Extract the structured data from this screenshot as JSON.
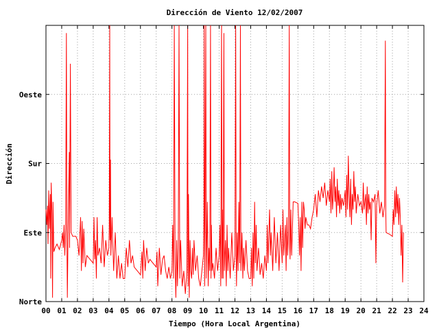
{
  "chart_data": {
    "type": "line",
    "title": "Dirección de Viento 12/02/2007",
    "xlabel": "Tiempo (Hora Local Argentina)",
    "ylabel": "Dirección",
    "xlim": [
      0,
      24
    ],
    "ylim": [
      0,
      360
    ],
    "x_ticks": [
      "00",
      "01",
      "02",
      "03",
      "04",
      "05",
      "06",
      "07",
      "08",
      "09",
      "10",
      "11",
      "12",
      "13",
      "14",
      "15",
      "16",
      "17",
      "18",
      "19",
      "20",
      "21",
      "22",
      "23",
      "24"
    ],
    "y_ticks": [
      {
        "value": 0,
        "label": "Norte"
      },
      {
        "value": 90,
        "label": "Este"
      },
      {
        "value": 180,
        "label": "Sur"
      },
      {
        "value": 270,
        "label": "Oeste"
      }
    ],
    "grid": true,
    "series_color": "#ff0000",
    "points": [
      [
        0.0,
        120
      ],
      [
        0.05,
        100
      ],
      [
        0.1,
        125
      ],
      [
        0.13,
        75
      ],
      [
        0.18,
        145
      ],
      [
        0.22,
        95
      ],
      [
        0.28,
        140
      ],
      [
        0.3,
        30
      ],
      [
        0.33,
        155
      ],
      [
        0.38,
        115
      ],
      [
        0.42,
        5
      ],
      [
        0.45,
        130
      ],
      [
        0.5,
        65
      ],
      [
        0.58,
        70
      ],
      [
        0.7,
        75
      ],
      [
        0.85,
        68
      ],
      [
        1.0,
        80
      ],
      [
        1.05,
        90
      ],
      [
        1.1,
        70
      ],
      [
        1.15,
        100
      ],
      [
        1.2,
        60
      ],
      [
        1.25,
        95
      ],
      [
        1.3,
        350
      ],
      [
        1.33,
        90
      ],
      [
        1.36,
        5
      ],
      [
        1.4,
        80
      ],
      [
        1.48,
        195
      ],
      [
        1.5,
        70
      ],
      [
        1.55,
        310
      ],
      [
        1.6,
        90
      ],
      [
        1.7,
        85
      ],
      [
        1.9,
        85
      ],
      [
        2.0,
        80
      ],
      [
        2.1,
        60
      ],
      [
        2.2,
        110
      ],
      [
        2.25,
        40
      ],
      [
        2.3,
        105
      ],
      [
        2.35,
        50
      ],
      [
        2.4,
        95
      ],
      [
        2.5,
        45
      ],
      [
        2.6,
        60
      ],
      [
        2.8,
        55
      ],
      [
        3.0,
        50
      ],
      [
        3.05,
        110
      ],
      [
        3.1,
        55
      ],
      [
        3.15,
        80
      ],
      [
        3.2,
        30
      ],
      [
        3.25,
        110
      ],
      [
        3.3,
        60
      ],
      [
        3.4,
        70
      ],
      [
        3.5,
        50
      ],
      [
        3.6,
        100
      ],
      [
        3.7,
        45
      ],
      [
        3.8,
        80
      ],
      [
        3.9,
        60
      ],
      [
        4.0,
        70
      ],
      [
        4.02,
        100
      ],
      [
        4.05,
        360
      ],
      [
        4.07,
        80
      ],
      [
        4.1,
        185
      ],
      [
        4.12,
        60
      ],
      [
        4.2,
        110
      ],
      [
        4.25,
        70
      ],
      [
        4.3,
        40
      ],
      [
        4.4,
        90
      ],
      [
        4.5,
        30
      ],
      [
        4.6,
        60
      ],
      [
        4.7,
        30
      ],
      [
        4.8,
        50
      ],
      [
        4.9,
        30
      ],
      [
        5.0,
        30
      ],
      [
        5.1,
        70
      ],
      [
        5.2,
        45
      ],
      [
        5.3,
        80
      ],
      [
        5.4,
        50
      ],
      [
        5.5,
        60
      ],
      [
        5.6,
        45
      ],
      [
        5.8,
        40
      ],
      [
        6.0,
        35
      ],
      [
        6.1,
        65
      ],
      [
        6.15,
        30
      ],
      [
        6.2,
        80
      ],
      [
        6.3,
        40
      ],
      [
        6.4,
        70
      ],
      [
        6.5,
        50
      ],
      [
        6.6,
        55
      ],
      [
        6.8,
        50
      ],
      [
        7.0,
        45
      ],
      [
        7.05,
        65
      ],
      [
        7.1,
        20
      ],
      [
        7.2,
        70
      ],
      [
        7.3,
        35
      ],
      [
        7.4,
        55
      ],
      [
        7.5,
        60
      ],
      [
        7.6,
        40
      ],
      [
        7.7,
        30
      ],
      [
        7.8,
        45
      ],
      [
        7.9,
        30
      ],
      [
        8.0,
        40
      ],
      [
        8.05,
        100
      ],
      [
        8.1,
        30
      ],
      [
        8.15,
        360
      ],
      [
        8.2,
        50
      ],
      [
        8.25,
        5
      ],
      [
        8.3,
        80
      ],
      [
        8.35,
        20
      ],
      [
        8.4,
        70
      ],
      [
        8.45,
        360
      ],
      [
        8.5,
        30
      ],
      [
        8.55,
        80
      ],
      [
        8.65,
        20
      ],
      [
        8.75,
        40
      ],
      [
        8.85,
        10
      ],
      [
        8.95,
        40
      ],
      [
        9.0,
        360
      ],
      [
        9.02,
        20
      ],
      [
        9.05,
        140
      ],
      [
        9.1,
        5
      ],
      [
        9.15,
        80
      ],
      [
        9.2,
        40
      ],
      [
        9.25,
        30
      ],
      [
        9.3,
        70
      ],
      [
        9.35,
        35
      ],
      [
        9.4,
        80
      ],
      [
        9.5,
        40
      ],
      [
        9.6,
        60
      ],
      [
        9.7,
        30
      ],
      [
        9.8,
        20
      ],
      [
        9.9,
        40
      ],
      [
        10.0,
        60
      ],
      [
        10.03,
        110
      ],
      [
        10.05,
        360
      ],
      [
        10.08,
        20
      ],
      [
        10.1,
        90
      ],
      [
        10.15,
        360
      ],
      [
        10.18,
        30
      ],
      [
        10.2,
        60
      ],
      [
        10.25,
        130
      ],
      [
        10.3,
        20
      ],
      [
        10.35,
        70
      ],
      [
        10.4,
        40
      ],
      [
        10.45,
        360
      ],
      [
        10.48,
        30
      ],
      [
        10.5,
        100
      ],
      [
        10.55,
        40
      ],
      [
        10.6,
        50
      ],
      [
        10.7,
        30
      ],
      [
        10.8,
        70
      ],
      [
        10.9,
        40
      ],
      [
        11.0,
        60
      ],
      [
        11.05,
        100
      ],
      [
        11.1,
        20
      ],
      [
        11.15,
        360
      ],
      [
        11.18,
        30
      ],
      [
        11.2,
        120
      ],
      [
        11.25,
        30
      ],
      [
        11.3,
        350
      ],
      [
        11.33,
        40
      ],
      [
        11.4,
        80
      ],
      [
        11.45,
        20
      ],
      [
        11.5,
        100
      ],
      [
        11.55,
        40
      ],
      [
        11.6,
        70
      ],
      [
        11.7,
        30
      ],
      [
        11.8,
        90
      ],
      [
        11.9,
        40
      ],
      [
        12.0,
        60
      ],
      [
        12.05,
        360
      ],
      [
        12.08,
        60
      ],
      [
        12.1,
        20
      ],
      [
        12.15,
        90
      ],
      [
        12.2,
        40
      ],
      [
        12.25,
        130
      ],
      [
        12.3,
        50
      ],
      [
        12.35,
        360
      ],
      [
        12.38,
        40
      ],
      [
        12.45,
        90
      ],
      [
        12.5,
        30
      ],
      [
        12.55,
        70
      ],
      [
        12.6,
        40
      ],
      [
        12.7,
        80
      ],
      [
        12.8,
        40
      ],
      [
        12.9,
        30
      ],
      [
        13.0,
        30
      ],
      [
        13.05,
        70
      ],
      [
        13.1,
        20
      ],
      [
        13.15,
        90
      ],
      [
        13.2,
        30
      ],
      [
        13.25,
        130
      ],
      [
        13.3,
        50
      ],
      [
        13.35,
        100
      ],
      [
        13.4,
        40
      ],
      [
        13.5,
        70
      ],
      [
        13.6,
        35
      ],
      [
        13.7,
        50
      ],
      [
        13.8,
        30
      ],
      [
        13.9,
        60
      ],
      [
        14.0,
        40
      ],
      [
        14.05,
        100
      ],
      [
        14.1,
        50
      ],
      [
        14.2,
        120
      ],
      [
        14.25,
        60
      ],
      [
        14.3,
        90
      ],
      [
        14.4,
        40
      ],
      [
        14.5,
        110
      ],
      [
        14.6,
        50
      ],
      [
        14.7,
        90
      ],
      [
        14.8,
        40
      ],
      [
        14.9,
        100
      ],
      [
        15.0,
        50
      ],
      [
        15.05,
        120
      ],
      [
        15.1,
        60
      ],
      [
        15.2,
        100
      ],
      [
        15.25,
        40
      ],
      [
        15.3,
        110
      ],
      [
        15.35,
        60
      ],
      [
        15.4,
        90
      ],
      [
        15.45,
        360
      ],
      [
        15.48,
        70
      ],
      [
        15.5,
        55
      ],
      [
        15.55,
        120
      ],
      [
        15.6,
        60
      ],
      [
        15.7,
        130
      ],
      [
        15.8,
        130
      ],
      [
        16.0,
        128
      ],
      [
        16.05,
        100
      ],
      [
        16.1,
        60
      ],
      [
        16.15,
        110
      ],
      [
        16.2,
        40
      ],
      [
        16.25,
        130
      ],
      [
        16.3,
        70
      ],
      [
        16.35,
        130
      ],
      [
        16.4,
        120
      ],
      [
        16.45,
        95
      ],
      [
        16.5,
        110
      ],
      [
        16.6,
        100
      ],
      [
        16.7,
        100
      ],
      [
        16.8,
        95
      ],
      [
        16.9,
        110
      ],
      [
        17.0,
        120
      ],
      [
        17.1,
        140
      ],
      [
        17.2,
        110
      ],
      [
        17.3,
        145
      ],
      [
        17.4,
        130
      ],
      [
        17.5,
        150
      ],
      [
        17.6,
        135
      ],
      [
        17.7,
        155
      ],
      [
        17.8,
        125
      ],
      [
        17.9,
        145
      ],
      [
        18.0,
        130
      ],
      [
        18.05,
        160
      ],
      [
        18.1,
        115
      ],
      [
        18.15,
        170
      ],
      [
        18.2,
        120
      ],
      [
        18.25,
        140
      ],
      [
        18.3,
        175
      ],
      [
        18.35,
        130
      ],
      [
        18.4,
        150
      ],
      [
        18.45,
        110
      ],
      [
        18.5,
        160
      ],
      [
        18.55,
        125
      ],
      [
        18.6,
        145
      ],
      [
        18.65,
        115
      ],
      [
        18.7,
        140
      ],
      [
        18.75,
        120
      ],
      [
        18.8,
        135
      ],
      [
        18.9,
        125
      ],
      [
        19.0,
        145
      ],
      [
        19.05,
        110
      ],
      [
        19.1,
        165
      ],
      [
        19.15,
        120
      ],
      [
        19.2,
        190
      ],
      [
        19.25,
        140
      ],
      [
        19.3,
        110
      ],
      [
        19.35,
        160
      ],
      [
        19.4,
        100
      ],
      [
        19.45,
        140
      ],
      [
        19.5,
        120
      ],
      [
        19.55,
        170
      ],
      [
        19.6,
        130
      ],
      [
        19.65,
        150
      ],
      [
        19.7,
        115
      ],
      [
        19.8,
        140
      ],
      [
        19.9,
        125
      ],
      [
        20.0,
        130
      ],
      [
        20.1,
        115
      ],
      [
        20.15,
        155
      ],
      [
        20.2,
        120
      ],
      [
        20.3,
        140
      ],
      [
        20.35,
        100
      ],
      [
        20.4,
        150
      ],
      [
        20.45,
        115
      ],
      [
        20.5,
        140
      ],
      [
        20.55,
        120
      ],
      [
        20.6,
        130
      ],
      [
        20.65,
        80
      ],
      [
        20.7,
        135
      ],
      [
        20.8,
        130
      ],
      [
        20.9,
        140
      ],
      [
        20.95,
        50
      ],
      [
        21.0,
        125
      ],
      [
        21.1,
        145
      ],
      [
        21.2,
        115
      ],
      [
        21.3,
        130
      ],
      [
        21.4,
        110
      ],
      [
        21.5,
        125
      ],
      [
        21.55,
        340
      ],
      [
        21.58,
        120
      ],
      [
        21.6,
        90
      ],
      [
        21.8,
        88
      ],
      [
        22.0,
        85
      ],
      [
        22.05,
        120
      ],
      [
        22.1,
        100
      ],
      [
        22.15,
        145
      ],
      [
        22.2,
        110
      ],
      [
        22.25,
        150
      ],
      [
        22.3,
        115
      ],
      [
        22.35,
        140
      ],
      [
        22.4,
        100
      ],
      [
        22.45,
        135
      ],
      [
        22.5,
        110
      ],
      [
        22.55,
        60
      ],
      [
        22.6,
        100
      ],
      [
        22.65,
        25
      ],
      [
        22.7,
        90
      ]
    ]
  }
}
